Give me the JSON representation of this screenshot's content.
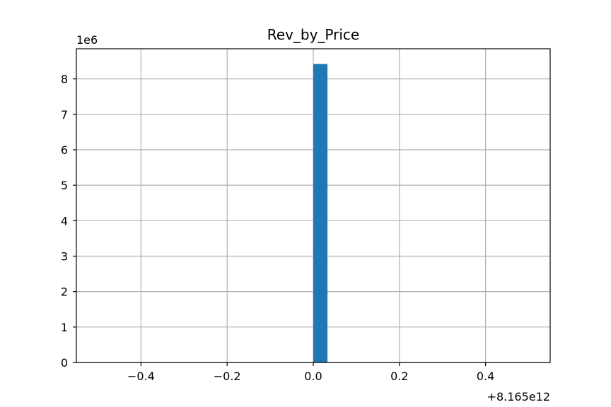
{
  "chart_data": {
    "type": "bar",
    "title": "Rev_by_Price",
    "xlabel": "",
    "ylabel": "",
    "x_offset_label": "+8.165e12",
    "y_scale_label": "1e6",
    "xlim": [
      -0.55,
      0.55
    ],
    "ylim": [
      0,
      8.85
    ],
    "x_ticks": [
      -0.4,
      -0.2,
      0.0,
      0.2,
      0.4
    ],
    "x_tick_labels": [
      "−0.4",
      "−0.2",
      "0.0",
      "0.2",
      "0.4"
    ],
    "y_ticks": [
      0,
      1,
      2,
      3,
      4,
      5,
      6,
      7,
      8
    ],
    "y_tick_labels": [
      "0",
      "1",
      "2",
      "3",
      "4",
      "5",
      "6",
      "7",
      "8"
    ],
    "bars": [
      {
        "x_start": 0.0,
        "x_end": 0.033,
        "value": 8.42
      }
    ],
    "grid": true,
    "legend": "none",
    "bar_color": "#1f77b4",
    "grid_color": "#b0b0b0"
  }
}
